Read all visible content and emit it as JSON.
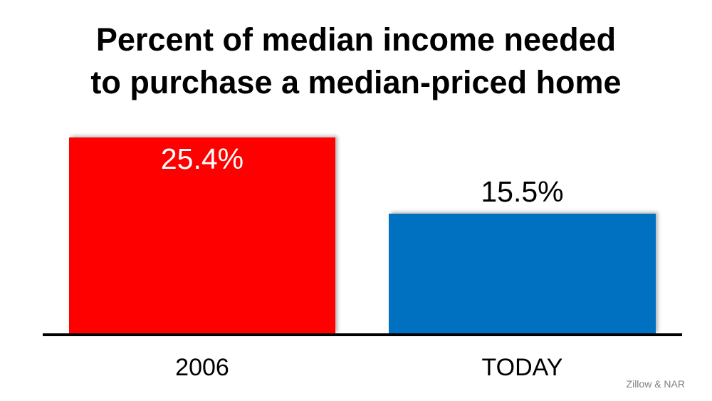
{
  "title": {
    "line1": "Percent of median income needed",
    "line2": "to purchase a median-priced home"
  },
  "source_label": "Zillow & NAR",
  "chart_data": {
    "type": "bar",
    "title": "Percent of median income needed to purchase a median-priced home",
    "categories": [
      "2006",
      "TODAY"
    ],
    "values": [
      25.4,
      15.5
    ],
    "value_labels": [
      "25.4%",
      "15.5%"
    ],
    "xlabel": "",
    "ylabel": "",
    "ylim": [
      0,
      27.5
    ],
    "grid": false,
    "legend": "none",
    "y_axis_visible": false,
    "x_axis_line_color": "#000000",
    "bar_colors": [
      "#FF0000",
      "#0070C0"
    ],
    "value_label_colors": [
      "#FFFFFF",
      "#000000"
    ],
    "value_label_placement": [
      "inside-top",
      "above-bar"
    ],
    "source": "Zillow & NAR"
  }
}
